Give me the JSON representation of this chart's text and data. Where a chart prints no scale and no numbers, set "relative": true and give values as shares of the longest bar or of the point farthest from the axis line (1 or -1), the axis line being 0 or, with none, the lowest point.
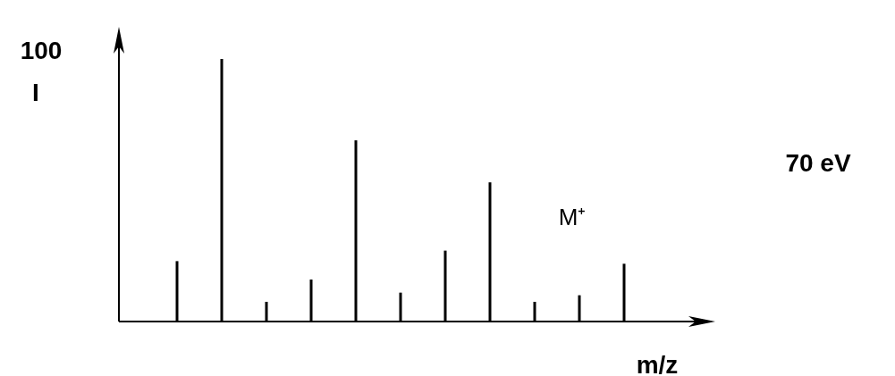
{
  "chart_data": {
    "type": "bar",
    "relative": true,
    "xlabel": "m/z",
    "ylabel": "I",
    "color": "#000000",
    "categories": [
      null,
      null,
      null,
      null,
      null,
      null,
      null,
      null,
      null,
      null,
      null
    ],
    "values": [
      0.23,
      1,
      0.075,
      0.16,
      0.69,
      0.11,
      0.27,
      0.53,
      0.075,
      0.1,
      0.22
    ],
    "annotations": [
      "100",
      "M⁺",
      "70 eV"
    ]
  }
}
